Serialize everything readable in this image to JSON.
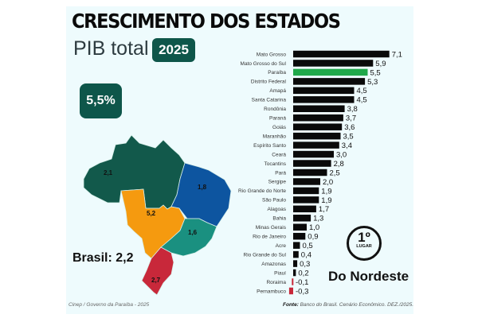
{
  "header": {
    "title": "CRESCIMENTO DOS ESTADOS",
    "subtitle": "PIB total .",
    "year_badge": "2025"
  },
  "highlight_badge": "5,5%",
  "map": {
    "brasil_label": "Brasil: 2,2",
    "regions": [
      {
        "name": "Norte",
        "value": "2,1",
        "color": "#12594b"
      },
      {
        "name": "Nordeste",
        "value": "1,8",
        "color": "#0d55a0"
      },
      {
        "name": "Centro-Oeste",
        "value": "5,2",
        "color": "#f59a0f"
      },
      {
        "name": "Sudeste",
        "value": "1,6",
        "color": "#1a9080"
      },
      {
        "name": "Sul",
        "value": "2,7",
        "color": "#c8283a"
      }
    ]
  },
  "ranking": {
    "position": "1º",
    "caption": "LUGAR",
    "region": "Do Nordeste"
  },
  "footer": {
    "credit": "Cinep / Governo da Paraíba - 2025",
    "source_label": "Fonte:",
    "source_text": "Banco do Brasil. Cenário Econômico. DEZ./2025."
  },
  "chart_data": {
    "type": "bar",
    "orientation": "horizontal",
    "categories": [
      "Mato Grosso",
      "Mato Grosso do Sul",
      "Paraíba",
      "Distrito Federal",
      "Amapá",
      "Santa Catarina",
      "Rondônia",
      "Paraná",
      "Goiás",
      "Maranhão",
      "Espírito Santo",
      "Ceará",
      "Tocantins",
      "Pará",
      "Sergipe",
      "Rio Grande do Norte",
      "São Paulo",
      "Alagoas",
      "Bahia",
      "Minas Gerais",
      "Rio de Janeiro",
      "Acre",
      "Rio Grande do Sul",
      "Amazonas",
      "Piauí",
      "Roraima",
      "Pernambuco"
    ],
    "values": [
      7.1,
      5.9,
      5.5,
      5.3,
      4.5,
      4.5,
      3.8,
      3.7,
      3.6,
      3.5,
      3.4,
      3.0,
      2.8,
      2.5,
      2.0,
      1.9,
      1.9,
      1.7,
      1.3,
      1.0,
      0.9,
      0.5,
      0.4,
      0.3,
      0.2,
      -0.1,
      -0.3
    ],
    "value_labels": [
      "7,1",
      "5,9",
      "5,5",
      "5,3",
      "4,5",
      "4,5",
      "3,8",
      "3,7",
      "3,6",
      "3,5",
      "3,4",
      "3,0",
      "2,8",
      "2,5",
      "2,0",
      "1,9",
      "1,9",
      "1,7",
      "1,3",
      "1,0",
      "0,9",
      "0,5",
      "0,4",
      "0,3",
      "0,2",
      "-0,1",
      "-0,3"
    ],
    "colors": {
      "default": "#0a0a0a",
      "highlight": "#1fa84a",
      "negative": "#c8283a"
    },
    "highlight_category": "Paraíba",
    "grid": false
  }
}
